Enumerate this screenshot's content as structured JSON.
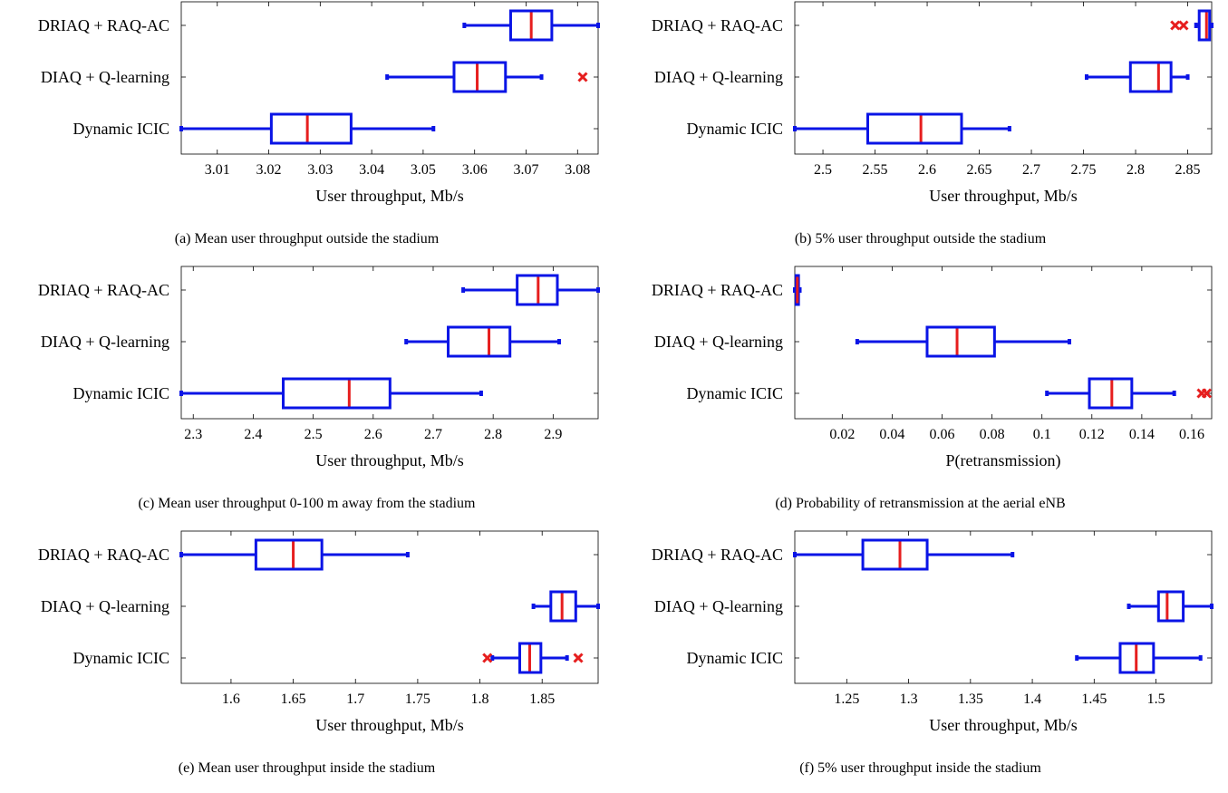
{
  "chart_data": [
    {
      "type": "boxplot",
      "orientation": "horizontal",
      "caption": "(a) Mean user throughput outside the stadium",
      "xlabel": "User throughput, Mb/s",
      "xlim": [
        3.003,
        3.084
      ],
      "xticks": [
        3.01,
        3.02,
        3.03,
        3.04,
        3.05,
        3.06,
        3.07,
        3.08
      ],
      "xtick_labels": [
        "3.01",
        "3.02",
        "3.03",
        "3.04",
        "3.05",
        "3.06",
        "3.07",
        "3.08"
      ],
      "categories": [
        "DRIAQ + RAQ-AC",
        "DIAQ + Q-learning",
        "Dynamic ICIC"
      ],
      "boxes": [
        {
          "whisker_low": 3.058,
          "q1": 3.067,
          "median": 3.071,
          "q3": 3.075,
          "whisker_high": 3.084,
          "outliers": []
        },
        {
          "whisker_low": 3.043,
          "q1": 3.056,
          "median": 3.0605,
          "q3": 3.066,
          "whisker_high": 3.073,
          "outliers": [
            3.081
          ]
        },
        {
          "whisker_low": 3.003,
          "q1": 3.0205,
          "median": 3.0275,
          "q3": 3.036,
          "whisker_high": 3.052,
          "outliers": []
        }
      ]
    },
    {
      "type": "boxplot",
      "orientation": "horizontal",
      "caption": "(b) 5% user throughput outside the stadium",
      "xlabel": "User throughput, Mb/s",
      "xlim": [
        2.473,
        2.873
      ],
      "xticks": [
        2.5,
        2.55,
        2.6,
        2.65,
        2.7,
        2.75,
        2.8,
        2.85
      ],
      "xtick_labels": [
        "2.5",
        "2.55",
        "2.6",
        "2.65",
        "2.7",
        "2.75",
        "2.8",
        "2.85"
      ],
      "categories": [
        "DRIAQ + RAQ-AC",
        "DIAQ + Q-learning",
        "Dynamic ICIC"
      ],
      "boxes": [
        {
          "whisker_low": 2.858,
          "q1": 2.861,
          "median": 2.868,
          "q3": 2.871,
          "whisker_high": 2.873,
          "outliers": [
            2.838,
            2.846
          ]
        },
        {
          "whisker_low": 2.753,
          "q1": 2.795,
          "median": 2.822,
          "q3": 2.834,
          "whisker_high": 2.85,
          "outliers": []
        },
        {
          "whisker_low": 2.473,
          "q1": 2.543,
          "median": 2.594,
          "q3": 2.633,
          "whisker_high": 2.679,
          "outliers": []
        }
      ]
    },
    {
      "type": "boxplot",
      "orientation": "horizontal",
      "caption": "(c) Mean user throughput 0-100 m away from the stadium",
      "xlabel": "User throughput, Mb/s",
      "xlim": [
        2.28,
        2.975
      ],
      "xticks": [
        2.3,
        2.4,
        2.5,
        2.6,
        2.7,
        2.8,
        2.9
      ],
      "xtick_labels": [
        "2.3",
        "2.4",
        "2.5",
        "2.6",
        "2.7",
        "2.8",
        "2.9"
      ],
      "categories": [
        "DRIAQ + RAQ-AC",
        "DIAQ + Q-learning",
        "Dynamic ICIC"
      ],
      "boxes": [
        {
          "whisker_low": 2.75,
          "q1": 2.84,
          "median": 2.875,
          "q3": 2.907,
          "whisker_high": 2.975,
          "outliers": []
        },
        {
          "whisker_low": 2.655,
          "q1": 2.725,
          "median": 2.793,
          "q3": 2.828,
          "whisker_high": 2.91,
          "outliers": []
        },
        {
          "whisker_low": 2.28,
          "q1": 2.45,
          "median": 2.56,
          "q3": 2.628,
          "whisker_high": 2.78,
          "outliers": []
        }
      ]
    },
    {
      "type": "boxplot",
      "orientation": "horizontal",
      "caption": "(d) Probability of retransmission at the aerial eNB",
      "xlabel": "P(retransmission)",
      "xlim": [
        0.001,
        0.168
      ],
      "xticks": [
        0.02,
        0.04,
        0.06,
        0.08,
        0.1,
        0.12,
        0.14,
        0.16
      ],
      "xtick_labels": [
        "0.02",
        "0.04",
        "0.06",
        "0.08",
        "0.1",
        "0.12",
        "0.14",
        "0.16"
      ],
      "categories": [
        "DRIAQ + RAQ-AC",
        "DIAQ + Q-learning",
        "Dynamic ICIC"
      ],
      "boxes": [
        {
          "whisker_low": 0.001,
          "q1": 0.0015,
          "median": 0.002,
          "q3": 0.0025,
          "whisker_high": 0.003,
          "outliers": []
        },
        {
          "whisker_low": 0.026,
          "q1": 0.054,
          "median": 0.066,
          "q3": 0.081,
          "whisker_high": 0.111,
          "outliers": []
        },
        {
          "whisker_low": 0.102,
          "q1": 0.119,
          "median": 0.128,
          "q3": 0.136,
          "whisker_high": 0.153,
          "outliers": [
            0.164,
            0.166
          ]
        }
      ]
    },
    {
      "type": "boxplot",
      "orientation": "horizontal",
      "caption": "(e) Mean user throughput inside the stadium",
      "xlabel": "User throughput, Mb/s",
      "xlim": [
        1.56,
        1.895
      ],
      "xticks": [
        1.6,
        1.65,
        1.7,
        1.75,
        1.8,
        1.85
      ],
      "xtick_labels": [
        "1.6",
        "1.65",
        "1.7",
        "1.75",
        "1.8",
        "1.85"
      ],
      "categories": [
        "DRIAQ + RAQ-AC",
        "DIAQ + Q-learning",
        "Dynamic ICIC"
      ],
      "boxes": [
        {
          "whisker_low": 1.56,
          "q1": 1.62,
          "median": 1.65,
          "q3": 1.673,
          "whisker_high": 1.742,
          "outliers": []
        },
        {
          "whisker_low": 1.843,
          "q1": 1.857,
          "median": 1.866,
          "q3": 1.877,
          "whisker_high": 1.895,
          "outliers": []
        },
        {
          "whisker_low": 1.81,
          "q1": 1.832,
          "median": 1.84,
          "q3": 1.849,
          "whisker_high": 1.87,
          "outliers": [
            1.806,
            1.879
          ]
        }
      ]
    },
    {
      "type": "boxplot",
      "orientation": "horizontal",
      "caption": "(f) 5% user throughput inside the stadium",
      "xlabel": "User throughput, Mb/s",
      "xlim": [
        1.208,
        1.545
      ],
      "xticks": [
        1.25,
        1.3,
        1.35,
        1.4,
        1.45,
        1.5
      ],
      "xtick_labels": [
        "1.25",
        "1.3",
        "1.35",
        "1.4",
        "1.45",
        "1.5"
      ],
      "categories": [
        "DRIAQ + RAQ-AC",
        "DIAQ + Q-learning",
        "Dynamic ICIC"
      ],
      "boxes": [
        {
          "whisker_low": 1.208,
          "q1": 1.263,
          "median": 1.293,
          "q3": 1.315,
          "whisker_high": 1.384,
          "outliers": []
        },
        {
          "whisker_low": 1.478,
          "q1": 1.502,
          "median": 1.509,
          "q3": 1.522,
          "whisker_high": 1.545,
          "outliers": []
        },
        {
          "whisker_low": 1.436,
          "q1": 1.471,
          "median": 1.484,
          "q3": 1.498,
          "whisker_high": 1.536,
          "outliers": []
        }
      ]
    }
  ],
  "colors": {
    "box": "#0a14e6",
    "median": "#e61e1e",
    "outlier": "#e61e1e",
    "axis": "#000000"
  }
}
